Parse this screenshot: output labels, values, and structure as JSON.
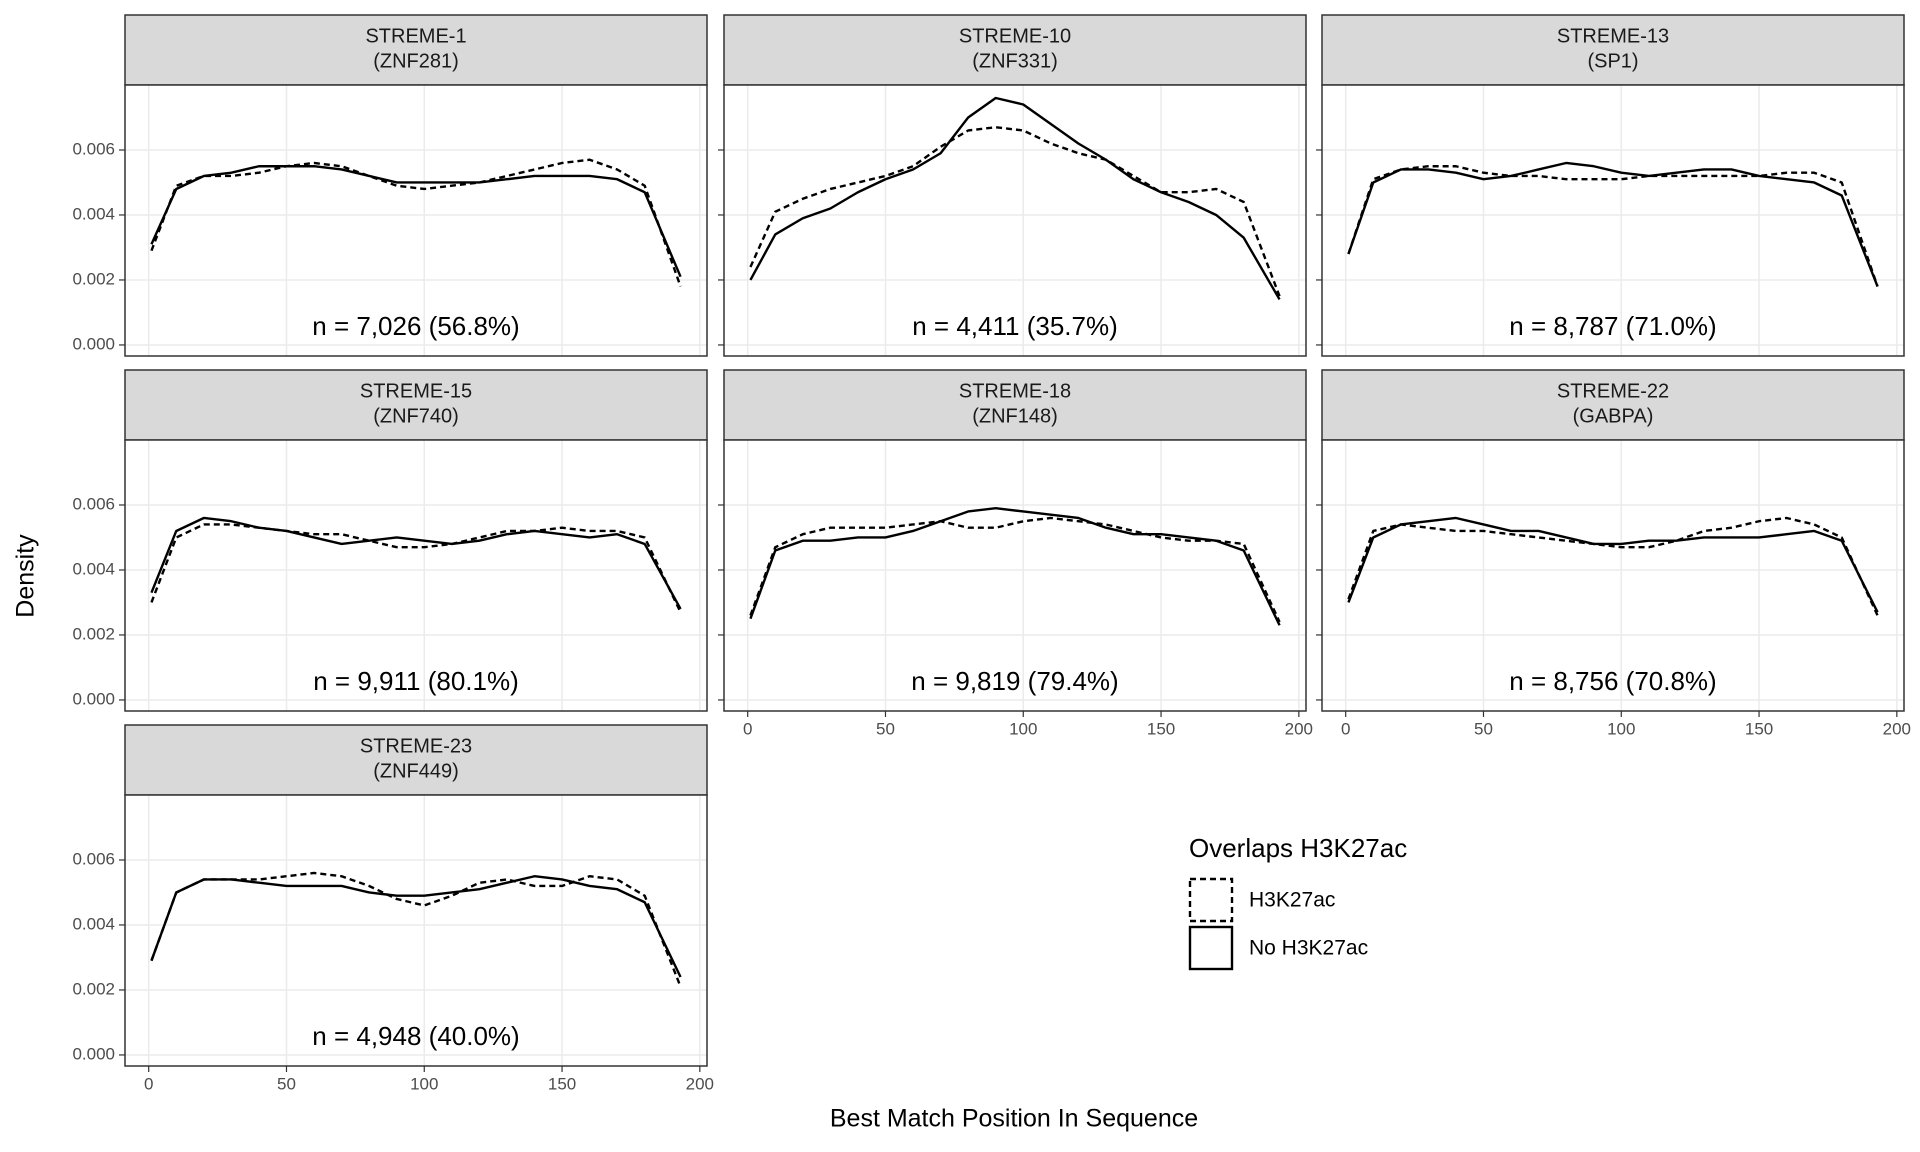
{
  "chart_data": {
    "type": "line",
    "xlabel": "Best Match Position In Sequence",
    "ylabel": "Density",
    "legend_title": "Overlaps H3K27ac",
    "legend": [
      {
        "name": "H3K27ac",
        "linetype": "dashed",
        "color": "#000000"
      },
      {
        "name": "No H3K27ac",
        "linetype": "solid",
        "color": "#000000"
      }
    ],
    "grid": true,
    "xlim": [
      -8.6,
      202.6
    ],
    "xticks": [
      0,
      50,
      100,
      150,
      200
    ],
    "ylim": [
      -0.00034,
      0.008
    ],
    "yticks": [
      {
        "value": 0,
        "label": "0.000"
      },
      {
        "value": 0.002,
        "label": "0.002"
      },
      {
        "value": 0.004,
        "label": "0.004"
      },
      {
        "value": 0.006,
        "label": "0.006"
      }
    ],
    "x": [
      1,
      10,
      20,
      30,
      40,
      50,
      60,
      70,
      80,
      90,
      100,
      110,
      120,
      130,
      140,
      150,
      160,
      170,
      180,
      193
    ],
    "facets": [
      {
        "title": "STREME-1",
        "subtitle": "(ZNF281)",
        "annotation": "n = 7,026 (56.8%)",
        "series": [
          {
            "values": [
              0.0029,
              0.0049,
              0.0052,
              0.0052,
              0.0053,
              0.0055,
              0.0056,
              0.0055,
              0.0052,
              0.0049,
              0.0048,
              0.0049,
              0.005,
              0.0052,
              0.0054,
              0.0056,
              0.0057,
              0.0054,
              0.0049,
              0.0018
            ]
          },
          {
            "values": [
              0.0031,
              0.0048,
              0.0052,
              0.0053,
              0.0055,
              0.0055,
              0.0055,
              0.0054,
              0.0052,
              0.005,
              0.005,
              0.005,
              0.005,
              0.0051,
              0.0052,
              0.0052,
              0.0052,
              0.0051,
              0.0047,
              0.0021
            ]
          }
        ]
      },
      {
        "title": "STREME-10",
        "subtitle": "(ZNF331)",
        "annotation": "n = 4,411 (35.7%)",
        "series": [
          {
            "values": [
              0.0024,
              0.0041,
              0.0045,
              0.0048,
              0.005,
              0.0052,
              0.0055,
              0.0061,
              0.0066,
              0.0067,
              0.0066,
              0.0062,
              0.0059,
              0.0057,
              0.0052,
              0.0047,
              0.0047,
              0.0048,
              0.0044,
              0.0015
            ]
          },
          {
            "values": [
              0.002,
              0.0034,
              0.0039,
              0.0042,
              0.0047,
              0.0051,
              0.0054,
              0.0059,
              0.007,
              0.0076,
              0.0074,
              0.0068,
              0.0062,
              0.0057,
              0.0051,
              0.0047,
              0.0044,
              0.004,
              0.0033,
              0.0014
            ]
          }
        ]
      },
      {
        "title": "STREME-13",
        "subtitle": "(SP1)",
        "annotation": "n = 8,787 (71.0%)",
        "series": [
          {
            "values": [
              0.0028,
              0.0051,
              0.0054,
              0.0055,
              0.0055,
              0.0053,
              0.0052,
              0.0052,
              0.0051,
              0.0051,
              0.0051,
              0.0052,
              0.0052,
              0.0052,
              0.0052,
              0.0052,
              0.0053,
              0.0053,
              0.005,
              0.0018
            ]
          },
          {
            "values": [
              0.0028,
              0.005,
              0.0054,
              0.0054,
              0.0053,
              0.0051,
              0.0052,
              0.0054,
              0.0056,
              0.0055,
              0.0053,
              0.0052,
              0.0053,
              0.0054,
              0.0054,
              0.0052,
              0.0051,
              0.005,
              0.0046,
              0.0018
            ]
          }
        ]
      },
      {
        "title": "STREME-15",
        "subtitle": "(ZNF740)",
        "annotation": "n = 9,911 (80.1%)",
        "series": [
          {
            "values": [
              0.003,
              0.005,
              0.0054,
              0.0054,
              0.0053,
              0.0052,
              0.0051,
              0.0051,
              0.0049,
              0.0047,
              0.0047,
              0.0048,
              0.005,
              0.0052,
              0.0052,
              0.0053,
              0.0052,
              0.0052,
              0.005,
              0.0027
            ]
          },
          {
            "values": [
              0.0033,
              0.0052,
              0.0056,
              0.0055,
              0.0053,
              0.0052,
              0.005,
              0.0048,
              0.0049,
              0.005,
              0.0049,
              0.0048,
              0.0049,
              0.0051,
              0.0052,
              0.0051,
              0.005,
              0.0051,
              0.0048,
              0.0028
            ]
          }
        ]
      },
      {
        "title": "STREME-18",
        "subtitle": "(ZNF148)",
        "annotation": "n = 9,819 (79.4%)",
        "series": [
          {
            "values": [
              0.0026,
              0.0047,
              0.0051,
              0.0053,
              0.0053,
              0.0053,
              0.0054,
              0.0055,
              0.0053,
              0.0053,
              0.0055,
              0.0056,
              0.0055,
              0.0054,
              0.0052,
              0.005,
              0.0049,
              0.0049,
              0.0048,
              0.0024
            ]
          },
          {
            "values": [
              0.0025,
              0.0046,
              0.0049,
              0.0049,
              0.005,
              0.005,
              0.0052,
              0.0055,
              0.0058,
              0.0059,
              0.0058,
              0.0057,
              0.0056,
              0.0053,
              0.0051,
              0.0051,
              0.005,
              0.0049,
              0.0046,
              0.0023
            ]
          }
        ]
      },
      {
        "title": "STREME-22",
        "subtitle": "(GABPA)",
        "annotation": "n = 8,756 (70.8%)",
        "series": [
          {
            "values": [
              0.0031,
              0.0052,
              0.0054,
              0.0053,
              0.0052,
              0.0052,
              0.0051,
              0.005,
              0.0049,
              0.0048,
              0.0047,
              0.0047,
              0.0049,
              0.0052,
              0.0053,
              0.0055,
              0.0056,
              0.0054,
              0.005,
              0.0026
            ]
          },
          {
            "values": [
              0.003,
              0.005,
              0.0054,
              0.0055,
              0.0056,
              0.0054,
              0.0052,
              0.0052,
              0.005,
              0.0048,
              0.0048,
              0.0049,
              0.0049,
              0.005,
              0.005,
              0.005,
              0.0051,
              0.0052,
              0.0049,
              0.0027
            ]
          }
        ]
      },
      {
        "title": "STREME-23",
        "subtitle": "(ZNF449)",
        "annotation": "n = 4,948 (40.0%)",
        "series": [
          {
            "values": [
              0.0029,
              0.005,
              0.0054,
              0.0054,
              0.0054,
              0.0055,
              0.0056,
              0.0055,
              0.0052,
              0.0048,
              0.0046,
              0.0049,
              0.0053,
              0.0054,
              0.0052,
              0.0052,
              0.0055,
              0.0054,
              0.0049,
              0.0021
            ]
          },
          {
            "values": [
              0.0029,
              0.005,
              0.0054,
              0.0054,
              0.0053,
              0.0052,
              0.0052,
              0.0052,
              0.005,
              0.0049,
              0.0049,
              0.005,
              0.0051,
              0.0053,
              0.0055,
              0.0054,
              0.0052,
              0.0051,
              0.0047,
              0.0024
            ]
          }
        ]
      }
    ]
  }
}
